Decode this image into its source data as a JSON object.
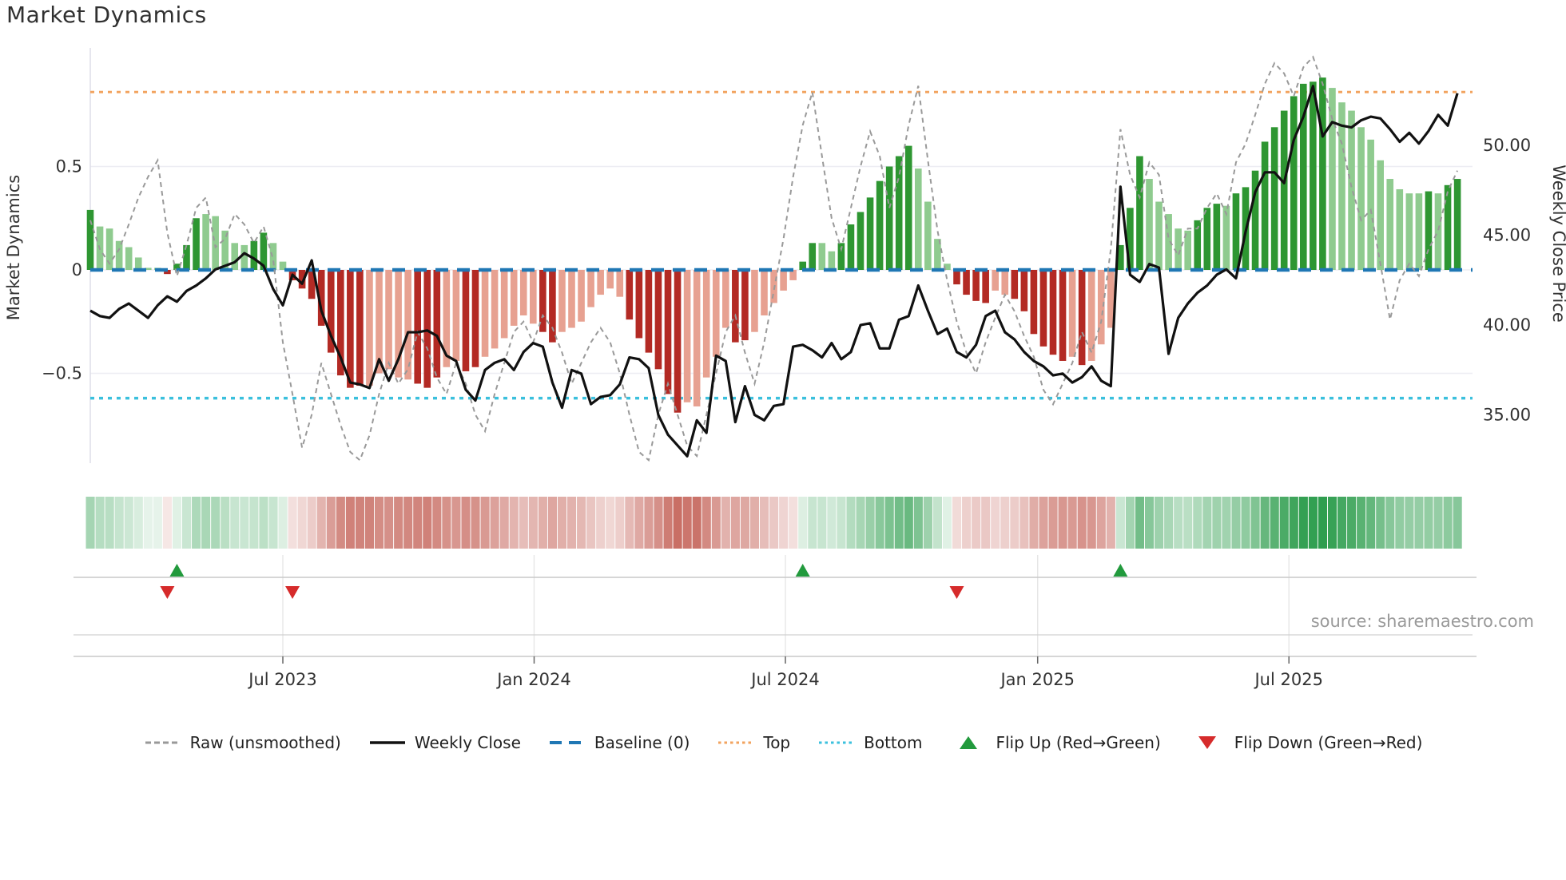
{
  "meta": {
    "title": "Market Dynamics",
    "source": "source: sharemaestro.com"
  },
  "axes": {
    "left_label": "Market Dynamics",
    "right_label": "Weekly Close Price",
    "left_ticks": [
      {
        "value": 0.5,
        "label": "0.5"
      },
      {
        "value": 0.0,
        "label": "0"
      },
      {
        "value": -0.5,
        "label": "−0.5"
      }
    ],
    "right_ticks": [
      {
        "value": 50,
        "label": "50.00"
      },
      {
        "value": 45,
        "label": "45.00"
      },
      {
        "value": 40,
        "label": "40.00"
      },
      {
        "value": 35,
        "label": "35.00"
      }
    ],
    "x_ticks": [
      {
        "week": 20.0,
        "label": "Jul 2023"
      },
      {
        "week": 46.1,
        "label": "Jan 2024"
      },
      {
        "week": 72.2,
        "label": "Jul 2024"
      },
      {
        "week": 98.4,
        "label": "Jan 2025"
      },
      {
        "week": 124.5,
        "label": "Jul 2025"
      }
    ]
  },
  "colors": {
    "dark_green": "#2e9632",
    "light_green": "#8fcb8f",
    "dark_red": "#b32a24",
    "light_red": "#e7a191",
    "heat_green": "#2f9e4f",
    "heat_red": "#bb4a3e",
    "baseline_blue": "#1f77b4",
    "top_orange": "#f2a35f",
    "bottom_cyan": "#3bc0dd",
    "raw_gray": "#999999",
    "close_black": "#111111",
    "flip_up_green": "#229a3d",
    "flip_down_red": "#d62b2b",
    "grid": "#ededf3",
    "spine": "#dcdce6",
    "marker_line": "#c9c9c9",
    "month_line": "#e6e6e6",
    "axis_text": "#333333"
  },
  "chart_data": {
    "type": "bar+line combo with heatmap strip and flip markers",
    "x_unit": "week",
    "start_date": "2023-02-13",
    "n_weeks": 143,
    "left_axis": {
      "label": "Market Dynamics",
      "ticks": [
        0.5,
        0,
        -0.5
      ],
      "baseline": 0
    },
    "right_axis": {
      "label": "Weekly Close Price",
      "ticks": [
        50,
        45,
        40,
        35
      ]
    },
    "reference_lines": {
      "baseline": 0.0,
      "top": 0.86,
      "bottom": -0.62
    },
    "flip_up_weeks": [
      9,
      74,
      107
    ],
    "flip_up_dates": [
      "2023-04-17",
      "2024-07-15",
      "2025-03-03"
    ],
    "flip_down_weeks": [
      8,
      21,
      90
    ],
    "flip_down_dates": [
      "2023-04-10",
      "2023-07-10",
      "2024-11-04"
    ],
    "bar_color_code": "G=dark-green g=light-green R=dark-red r=light-red",
    "bar_colors": "GgggggggRGGGgggggGGggRRRRRRRRrrrrrRRRrrRRrrrrrrRRrrrrrrrRRRRRRrrrrrRRrrrrrGGggGGGGGGGGggggRRRRrrRRRRRRrRrrrGGGgggggGGGgGGGGGGGGGGggggggggggGgGG",
    "series": [
      {
        "name": "Market Dynamics (bars, smoothed)",
        "type": "bar",
        "axis": "left",
        "values": [
          0.29,
          0.21,
          0.2,
          0.14,
          0.11,
          0.06,
          0.01,
          0.01,
          -0.02,
          0.03,
          0.12,
          0.25,
          0.27,
          0.26,
          0.19,
          0.13,
          0.12,
          0.14,
          0.18,
          0.13,
          0.04,
          -0.05,
          -0.09,
          -0.14,
          -0.27,
          -0.4,
          -0.51,
          -0.57,
          -0.56,
          -0.56,
          -0.5,
          -0.48,
          -0.52,
          -0.53,
          -0.55,
          -0.57,
          -0.52,
          -0.47,
          -0.44,
          -0.49,
          -0.47,
          -0.42,
          -0.38,
          -0.33,
          -0.27,
          -0.22,
          -0.26,
          -0.3,
          -0.35,
          -0.3,
          -0.28,
          -0.25,
          -0.18,
          -0.12,
          -0.09,
          -0.13,
          -0.24,
          -0.33,
          -0.4,
          -0.48,
          -0.6,
          -0.69,
          -0.64,
          -0.66,
          -0.52,
          -0.42,
          -0.28,
          -0.35,
          -0.34,
          -0.3,
          -0.22,
          -0.16,
          -0.1,
          -0.05,
          0.04,
          0.13,
          0.13,
          0.09,
          0.13,
          0.22,
          0.28,
          0.35,
          0.43,
          0.5,
          0.55,
          0.6,
          0.49,
          0.33,
          0.15,
          0.03,
          -0.07,
          -0.12,
          -0.15,
          -0.16,
          -0.1,
          -0.12,
          -0.14,
          -0.2,
          -0.31,
          -0.37,
          -0.41,
          -0.44,
          -0.42,
          -0.46,
          -0.44,
          -0.36,
          -0.28,
          0.12,
          0.3,
          0.55,
          0.44,
          0.33,
          0.27,
          0.2,
          0.19,
          0.24,
          0.3,
          0.32,
          0.31,
          0.37,
          0.4,
          0.48,
          0.62,
          0.69,
          0.77,
          0.84,
          0.9,
          0.91,
          0.93,
          0.88,
          0.81,
          0.77,
          0.69,
          0.63,
          0.53,
          0.44,
          0.39,
          0.37,
          0.37,
          0.38,
          0.37,
          0.41,
          0.44
        ]
      },
      {
        "name": "Raw (unsmoothed)",
        "type": "line-dashed",
        "axis": "left",
        "values": [
          0.24,
          0.1,
          0.03,
          0.1,
          0.22,
          0.35,
          0.45,
          0.53,
          0.18,
          -0.03,
          0.12,
          0.3,
          0.35,
          0.11,
          0.15,
          0.27,
          0.22,
          0.13,
          0.21,
          0.05,
          -0.35,
          -0.6,
          -0.86,
          -0.7,
          -0.45,
          -0.6,
          -0.75,
          -0.88,
          -0.92,
          -0.8,
          -0.6,
          -0.45,
          -0.55,
          -0.48,
          -0.3,
          -0.38,
          -0.52,
          -0.6,
          -0.45,
          -0.55,
          -0.7,
          -0.78,
          -0.6,
          -0.45,
          -0.3,
          -0.25,
          -0.35,
          -0.22,
          -0.28,
          -0.4,
          -0.55,
          -0.45,
          -0.35,
          -0.28,
          -0.35,
          -0.5,
          -0.7,
          -0.88,
          -0.92,
          -0.7,
          -0.55,
          -0.7,
          -0.85,
          -0.9,
          -0.7,
          -0.5,
          -0.3,
          -0.22,
          -0.4,
          -0.55,
          -0.35,
          -0.1,
          0.15,
          0.45,
          0.7,
          0.86,
          0.55,
          0.25,
          0.1,
          0.3,
          0.5,
          0.67,
          0.55,
          0.3,
          0.45,
          0.7,
          0.89,
          0.53,
          0.19,
          -0.05,
          -0.25,
          -0.4,
          -0.5,
          -0.35,
          -0.23,
          -0.12,
          -0.2,
          -0.32,
          -0.42,
          -0.58,
          -0.65,
          -0.55,
          -0.45,
          -0.3,
          -0.4,
          -0.25,
          0.1,
          0.68,
          0.46,
          0.35,
          0.52,
          0.46,
          0.15,
          0.07,
          0.2,
          0.2,
          0.3,
          0.37,
          0.27,
          0.52,
          0.61,
          0.75,
          0.9,
          1.0,
          0.95,
          0.84,
          0.98,
          1.03,
          0.9,
          0.73,
          0.61,
          0.4,
          0.24,
          0.29,
          0.03,
          -0.24,
          -0.05,
          0.03,
          -0.03,
          0.1,
          0.19,
          0.38,
          0.48
        ]
      },
      {
        "name": "Weekly Close",
        "type": "line",
        "axis": "right",
        "values": [
          40.8,
          40.5,
          40.4,
          40.9,
          41.2,
          40.8,
          40.4,
          41.1,
          41.6,
          41.3,
          41.9,
          42.2,
          42.6,
          43.1,
          43.3,
          43.5,
          44.0,
          43.7,
          43.3,
          42.0,
          41.1,
          42.8,
          42.3,
          43.6,
          40.8,
          39.4,
          38.2,
          36.8,
          36.7,
          36.5,
          38.1,
          36.9,
          38.1,
          39.6,
          39.6,
          39.7,
          39.4,
          38.3,
          38.0,
          36.4,
          35.8,
          37.5,
          37.9,
          38.1,
          37.5,
          38.5,
          39.0,
          38.8,
          36.8,
          35.4,
          37.5,
          37.3,
          35.6,
          36.0,
          36.1,
          36.7,
          38.2,
          38.1,
          37.6,
          35.0,
          33.9,
          33.3,
          32.7,
          34.7,
          34.0,
          38.3,
          38.0,
          34.6,
          36.6,
          35.0,
          34.7,
          35.5,
          35.6,
          38.8,
          38.9,
          38.6,
          38.2,
          39.0,
          38.1,
          38.5,
          40.0,
          40.1,
          38.7,
          38.7,
          40.3,
          40.5,
          42.2,
          40.8,
          39.5,
          39.8,
          38.5,
          38.2,
          38.9,
          40.5,
          40.8,
          39.6,
          39.2,
          38.5,
          38.0,
          37.7,
          37.2,
          37.3,
          36.8,
          37.1,
          37.7,
          36.9,
          36.6,
          47.7,
          42.8,
          42.4,
          43.4,
          43.2,
          38.4,
          40.4,
          41.2,
          41.8,
          42.2,
          42.8,
          43.1,
          42.6,
          45.2,
          47.4,
          48.5,
          48.5,
          47.9,
          50.3,
          51.6,
          53.3,
          50.5,
          51.3,
          51.1,
          51.0,
          51.4,
          51.6,
          51.5,
          50.9,
          50.2,
          50.7,
          50.1,
          50.8,
          51.7,
          51.1,
          52.9
        ]
      }
    ],
    "heatmap": "one cell per week, green/red shade proportional to bar magnitude"
  },
  "legend": {
    "items": [
      {
        "label": "Raw (unsmoothed)",
        "swatch": "dashed-line",
        "color_key": "raw_gray"
      },
      {
        "label": "Weekly Close",
        "swatch": "solid-line",
        "color_key": "close_black"
      },
      {
        "label": "Baseline (0)",
        "swatch": "long-dash",
        "color_key": "baseline_blue"
      },
      {
        "label": "Top",
        "swatch": "dotted-line",
        "color_key": "top_orange"
      },
      {
        "label": "Bottom",
        "swatch": "dotted-line",
        "color_key": "bottom_cyan"
      },
      {
        "label": "Flip Up (Red→Green)",
        "swatch": "triangle-up",
        "color_key": "flip_up_green"
      },
      {
        "label": "Flip Down (Green→Red)",
        "swatch": "triangle-down",
        "color_key": "flip_down_red"
      }
    ]
  }
}
